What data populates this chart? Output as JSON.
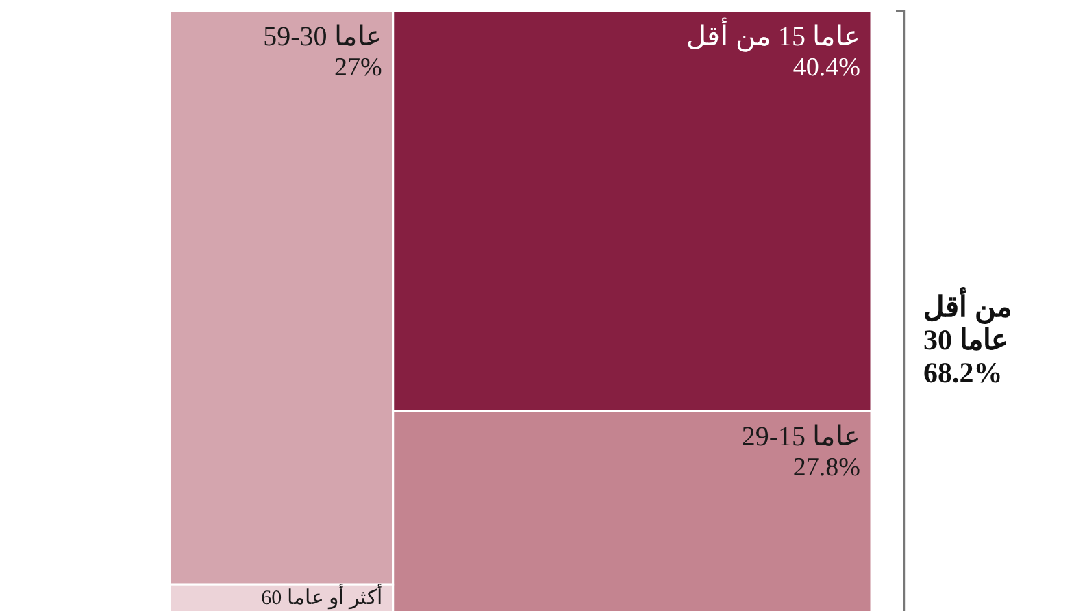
{
  "chart_data": {
    "type": "other",
    "categories": [
      "أقل من 15 عاما",
      "29-15 عاما",
      "59-30 عاما",
      "60 عاما أو أكثر"
    ],
    "values": [
      40.4,
      27.8,
      27,
      null
    ],
    "value_labels": [
      "40.4%",
      "27.8%",
      "27%",
      null
    ],
    "colors": [
      "#861f41",
      "#c48490",
      "#d4a5ae",
      "#ecd3d8"
    ],
    "annotations": [
      "أقل من\n30 عاما\n68.2%"
    ]
  }
}
